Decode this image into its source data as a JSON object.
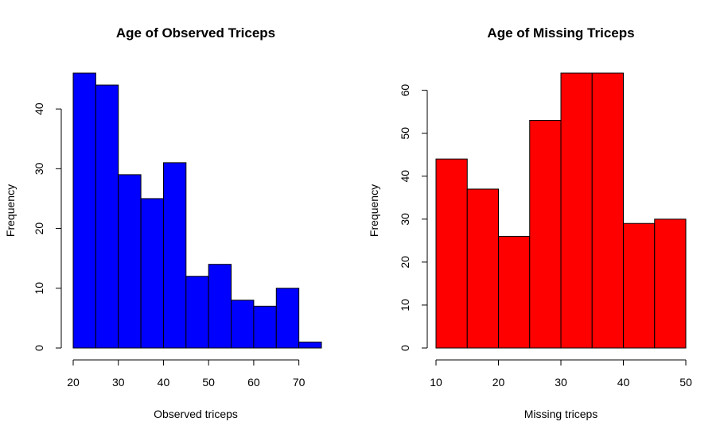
{
  "chart_data": [
    {
      "type": "bar",
      "title": "Age of Observed Triceps",
      "xlabel": "Observed triceps",
      "ylabel": "Frequency",
      "bin_edges": [
        20,
        25,
        30,
        35,
        40,
        45,
        50,
        55,
        60,
        65,
        70,
        75
      ],
      "values": [
        46,
        44,
        29,
        25,
        31,
        12,
        14,
        8,
        7,
        10,
        1
      ],
      "xlim": [
        20,
        75
      ],
      "ylim": [
        0,
        46
      ],
      "x_ticks": [
        20,
        30,
        40,
        50,
        60,
        70
      ],
      "y_ticks": [
        0,
        10,
        20,
        30,
        40
      ],
      "bar_color": "#0000ff",
      "grid": false
    },
    {
      "type": "bar",
      "title": "Age of Missing Triceps",
      "xlabel": "Missing triceps",
      "ylabel": "Frequency",
      "bin_edges": [
        10,
        15,
        20,
        25,
        30,
        35,
        40,
        45,
        50
      ],
      "values": [
        44,
        37,
        26,
        53,
        64,
        64,
        29,
        30
      ],
      "xlim": [
        10,
        50
      ],
      "ylim": [
        0,
        64
      ],
      "x_ticks": [
        10,
        20,
        30,
        40,
        50
      ],
      "y_ticks": [
        0,
        10,
        20,
        30,
        40,
        50,
        60
      ],
      "bar_color": "#ff0000",
      "grid": false
    }
  ]
}
